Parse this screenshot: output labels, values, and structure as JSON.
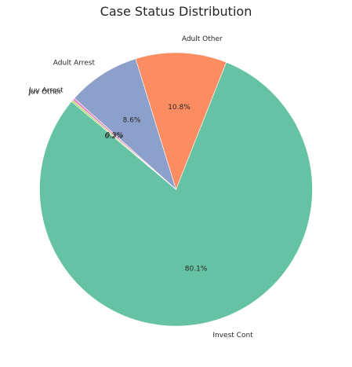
{
  "chart_data": {
    "type": "pie",
    "title": "Case Status Distribution",
    "start_angle_deg": 140,
    "direction": "counterclockwise",
    "label_fmt_decimals": 1,
    "slices": [
      {
        "label": "Invest Cont",
        "value": 80.1,
        "pct_text": "80.1%",
        "color": "#66c2a5"
      },
      {
        "label": "Adult Other",
        "value": 10.8,
        "pct_text": "10.8%",
        "color": "#fc8d62"
      },
      {
        "label": "Adult Arrest",
        "value": 8.6,
        "pct_text": "8.6%",
        "color": "#8da0cb"
      },
      {
        "label": "Juv Arrest",
        "value": 0.3,
        "pct_text": "0.3%",
        "color": "#e78ac3"
      },
      {
        "label": "Juv Other",
        "value": 0.2,
        "pct_text": "0.2%",
        "color": "#a6d854"
      }
    ]
  }
}
